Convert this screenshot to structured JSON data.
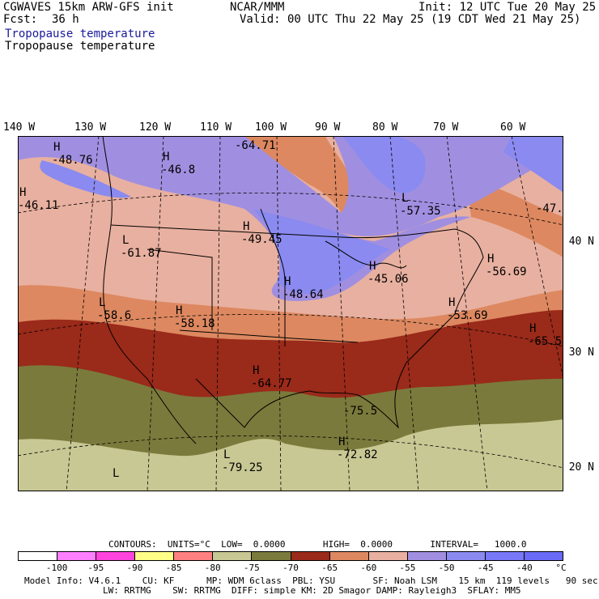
{
  "header": {
    "model": "CGWAVES 15km ARW-GFS init",
    "fcst_label": "Fcst:",
    "fcst_value": "36 h",
    "org": "NCAR/MMM",
    "init": "Init: 12 UTC Tue 20 May 25",
    "valid": "Valid: 00 UTC Thu 22 May 25 (19 CDT Wed 21 May 25)",
    "field_title_blue": "Tropopause temperature",
    "field_title_black": "Tropopause temperature"
  },
  "lon_labels": [
    "140 W",
    "130 W",
    "120 W",
    "110 W",
    "100 W",
    "90 W",
    "80 W",
    "70 W",
    "60 W"
  ],
  "lat_labels": [
    "40 N",
    "30 N",
    "20 N"
  ],
  "centers": [
    {
      "type": "H",
      "value": "-48.76"
    },
    {
      "type": "H",
      "value": "-46.8"
    },
    {
      "type": "H",
      "value": "-46.11"
    },
    {
      "type": "",
      "value": "-64.71"
    },
    {
      "type": "L",
      "value": "-57.35"
    },
    {
      "type": "",
      "value": "-47."
    },
    {
      "type": "H",
      "value": "-49.45"
    },
    {
      "type": "L",
      "value": "-61.87"
    },
    {
      "type": "H",
      "value": "-45.06"
    },
    {
      "type": "H",
      "value": "-56.69"
    },
    {
      "type": "H",
      "value": "-48.64"
    },
    {
      "type": "L",
      "value": "-58.6"
    },
    {
      "type": "H",
      "value": "-58.18"
    },
    {
      "type": "H",
      "value": "-53.69"
    },
    {
      "type": "H",
      "value": "-65.5"
    },
    {
      "type": "H",
      "value": "-64.77"
    },
    {
      "type": "",
      "value": "-75.5"
    },
    {
      "type": "H",
      "value": "-72.82"
    },
    {
      "type": "L",
      "value": "-79.25"
    },
    {
      "type": "L",
      "value": ""
    }
  ],
  "contours_line": "CONTOURS:  UNITS=°C  LOW=  0.0000       HIGH=  0.0000       INTERVAL=   1000.0",
  "colorbar": {
    "colors": [
      "#ffffff",
      "#ff80ff",
      "#ff44dd",
      "#ffff88",
      "#ff8080",
      "#c8c894",
      "#7a7a3c",
      "#9a2a1a",
      "#dd8860",
      "#e8b0a0",
      "#a08fe0",
      "#8a8af0",
      "#7878f8",
      "#6a6af8"
    ],
    "labels": [
      "-100",
      "-95",
      "-90",
      "-85",
      "-80",
      "-75",
      "-70",
      "-65",
      "-60",
      "-55",
      "-50",
      "-45",
      "-40",
      "°C"
    ]
  },
  "footer": {
    "line1": "Model Info: V4.6.1    CU: KF      MP: WDM 6class  PBL: YSU       SF: Noah LSM    15 km  119 levels   90 sec",
    "line2": "LW: RRTMG    SW: RRTMG  DIFF: simple KM: 2D Smagor DAMP: Rayleigh3  SFLAY: MM5"
  }
}
